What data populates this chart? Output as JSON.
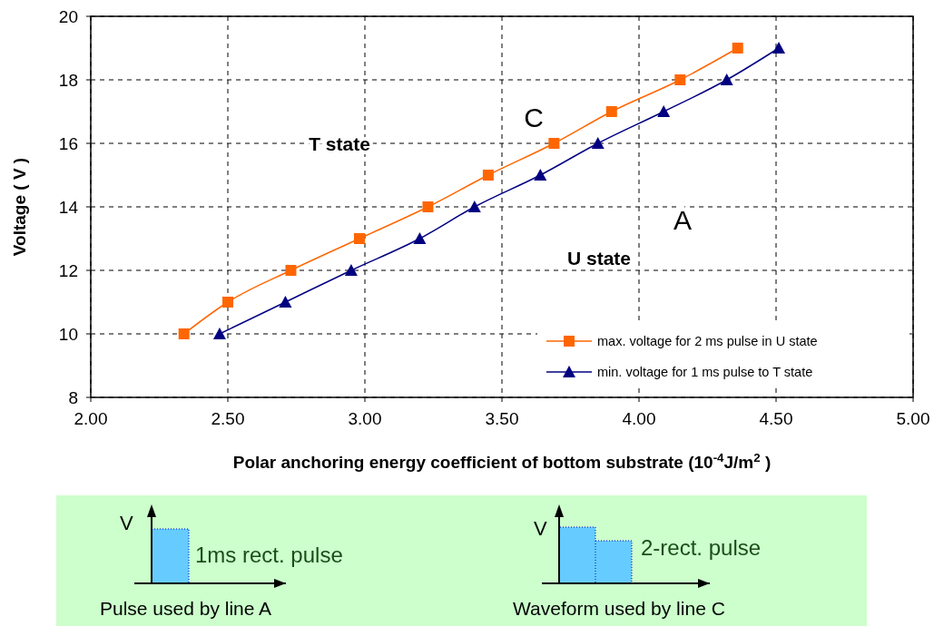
{
  "chart_data": [
    {
      "type": "line",
      "xlabel": "Polar anchoring energy coefficient of bottom substrate (10$^{-4}$J/m$^{2}$ )",
      "ylabel": "Voltage ( V )",
      "xlim": [
        2,
        5
      ],
      "ylim": [
        8,
        20
      ],
      "xticks": [
        {
          "value": 2,
          "label": "2.00"
        },
        {
          "value": 2.5,
          "label": "2.50"
        },
        {
          "value": 3,
          "label": "3.00"
        },
        {
          "value": 3.5,
          "label": "3.50"
        },
        {
          "value": 4,
          "label": "4.00"
        },
        {
          "value": 4.5,
          "label": "4.50"
        },
        {
          "value": 5,
          "label": "5.00"
        }
      ],
      "yticks": [
        8,
        10,
        12,
        14,
        16,
        18,
        20
      ],
      "grid": true,
      "legend": "bottom right",
      "line_style": "solid",
      "series": [
        {
          "name": "max. voltage for 2 ms pulse in U state",
          "color": "#ff6600",
          "marker": "square",
          "x": [
            2.34,
            2.5,
            2.73,
            2.98,
            3.23,
            3.45,
            3.69,
            3.9,
            4.15,
            4.36
          ],
          "values": [
            10,
            11,
            12,
            13,
            14,
            15,
            16,
            17,
            18,
            19
          ]
        },
        {
          "name": "min. voltage for 1 ms pulse to T state",
          "color": "#000080",
          "marker": "triangle",
          "x": [
            2.47,
            2.71,
            2.95,
            3.2,
            3.4,
            3.64,
            3.85,
            4.09,
            4.32,
            4.51
          ],
          "values": [
            10,
            11,
            12,
            13,
            14,
            15,
            16,
            17,
            18,
            19
          ]
        }
      ],
      "annotations": [
        "T state",
        "U state",
        "C",
        "A"
      ]
    },
    {
      "type": "other",
      "annotations": [
        "V",
        "1ms rect. pulse",
        "Pulse used by line A",
        "V",
        "2-rect. pulse",
        "Waveform used by line C"
      ]
    }
  ]
}
